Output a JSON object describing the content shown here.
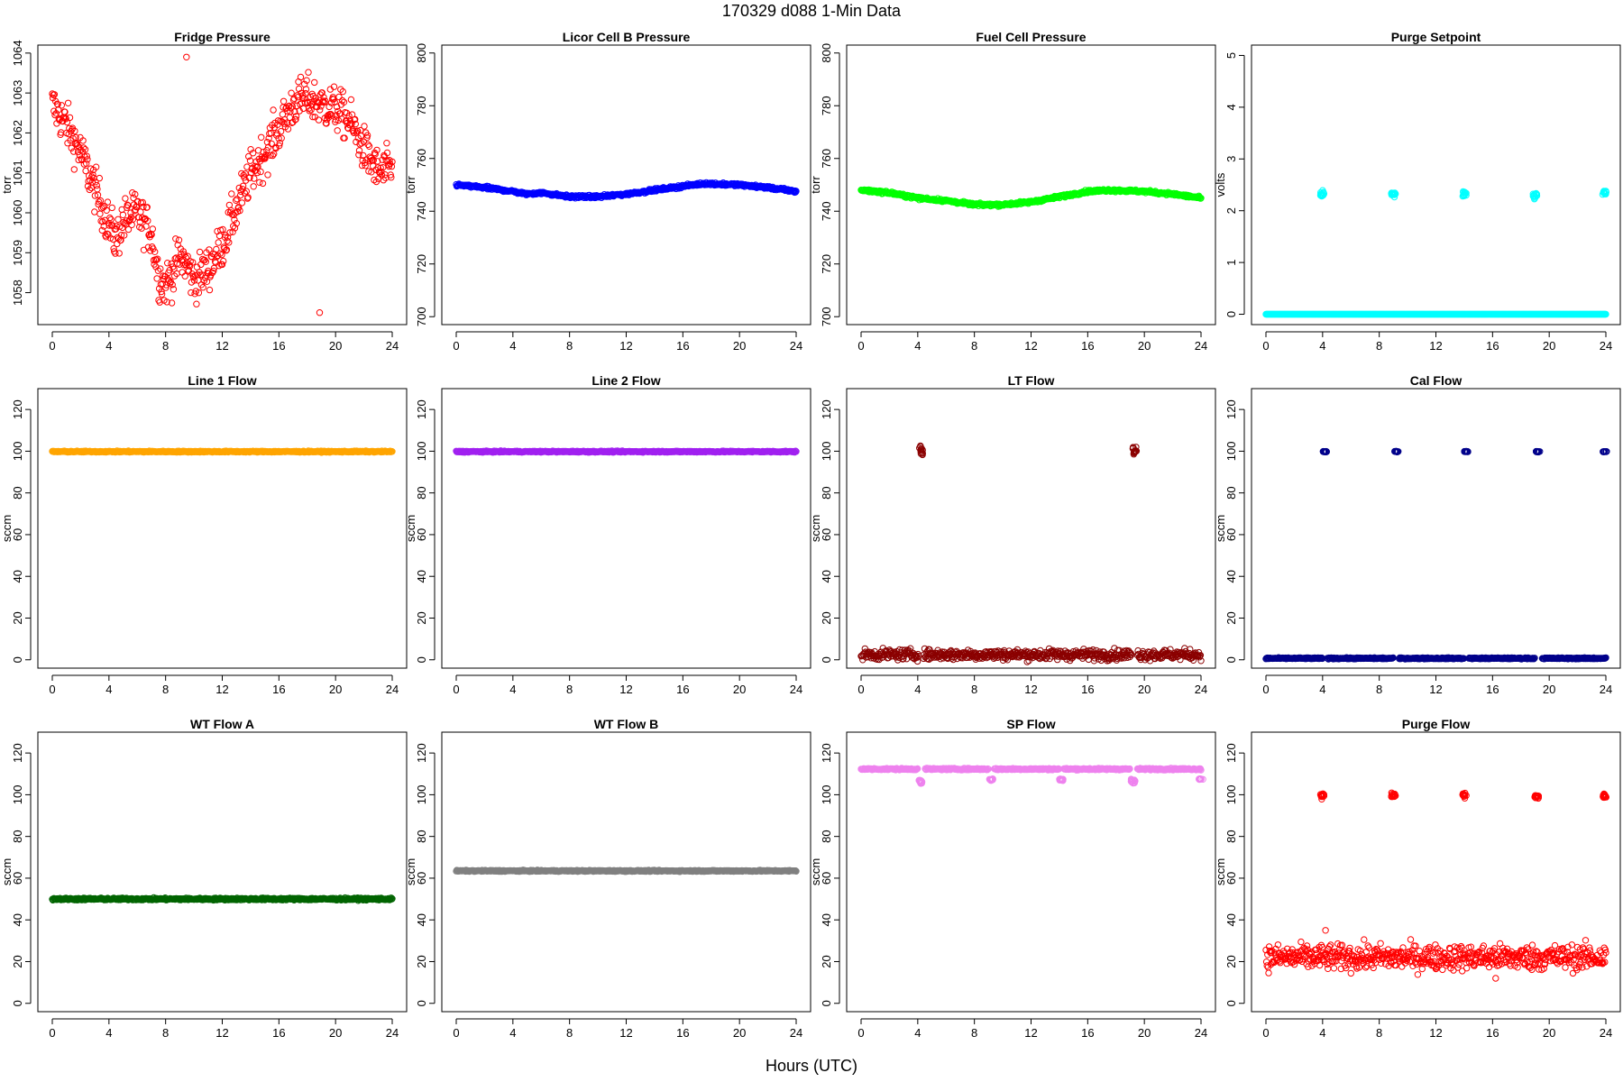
{
  "page": {
    "title": "170329   d088   1-Min Data",
    "xlabel": "Hours (UTC)"
  },
  "chart_data": [
    {
      "type": "scatter",
      "title": "Fridge Pressure",
      "ylabel": "torr",
      "xlim": [
        0,
        24
      ],
      "ylim": [
        1057.2,
        1064.2
      ],
      "xticks": [
        0,
        4,
        8,
        12,
        16,
        20,
        24
      ],
      "yticks": [
        1058,
        1059,
        1060,
        1061,
        1062,
        1063,
        1064
      ],
      "grid": false,
      "color": "#ff0000",
      "marker": "open-circle",
      "series": [
        {
          "x": [
            0,
            1,
            2,
            3,
            4,
            4.5,
            5,
            6,
            7,
            7.5,
            8,
            8.5,
            9,
            9.5,
            10,
            11,
            12,
            13,
            14,
            15,
            16,
            17,
            18,
            19,
            20,
            21,
            22,
            23,
            24
          ],
          "values": [
            1062.7,
            1062.2,
            1061.5,
            1060.6,
            1059.7,
            1059.3,
            1059.8,
            1060.0,
            1059.5,
            1058.4,
            1058.2,
            1058.5,
            1058.9,
            1058.7,
            1058.3,
            1058.6,
            1059.2,
            1060.1,
            1061.0,
            1061.5,
            1062.1,
            1062.7,
            1062.9,
            1062.7,
            1062.6,
            1062.3,
            1061.6,
            1061.0,
            1061.1
          ],
          "spread": 0.55,
          "outlier_values": [
            1063.9,
            1057.5
          ]
        }
      ]
    },
    {
      "type": "scatter",
      "title": "Licor Cell B Pressure",
      "ylabel": "torr",
      "xlim": [
        0,
        24
      ],
      "ylim": [
        697,
        803
      ],
      "xticks": [
        0,
        4,
        8,
        12,
        16,
        20,
        24
      ],
      "yticks": [
        700,
        720,
        740,
        760,
        780,
        800
      ],
      "grid": false,
      "color": "#0000ff",
      "marker": "open-circle",
      "series": [
        {
          "x": [
            0,
            2,
            4,
            5,
            6,
            8,
            10,
            12,
            14,
            16,
            17.5,
            20,
            22,
            24
          ],
          "values": [
            750,
            749,
            747.5,
            746.5,
            747,
            745.5,
            745.5,
            746.5,
            748,
            749.5,
            750.5,
            750,
            749,
            747.5
          ],
          "spread": 0.5,
          "outlier_values": []
        }
      ]
    },
    {
      "type": "scatter",
      "title": "Fuel Cell Pressure",
      "ylabel": "torr",
      "xlim": [
        0,
        24
      ],
      "ylim": [
        697,
        803
      ],
      "xticks": [
        0,
        4,
        8,
        12,
        16,
        20,
        24
      ],
      "yticks": [
        700,
        720,
        740,
        760,
        780,
        800
      ],
      "grid": false,
      "color": "#00ff00",
      "marker": "open-circle",
      "series": [
        {
          "x": [
            0,
            2,
            4,
            6,
            8,
            10,
            12,
            14,
            16,
            17.5,
            20,
            22,
            24
          ],
          "values": [
            748,
            747,
            745,
            744,
            742.5,
            742.5,
            743.5,
            745.5,
            747.5,
            748,
            747.5,
            746.5,
            745
          ],
          "spread": 0.5,
          "outlier_values": []
        }
      ]
    },
    {
      "type": "scatter",
      "title": "Purge Setpoint",
      "ylabel": "volts",
      "xlim": [
        0,
        24
      ],
      "ylim": [
        -0.2,
        5.2
      ],
      "xticks": [
        0,
        4,
        8,
        12,
        16,
        20,
        24
      ],
      "yticks": [
        0,
        1,
        2,
        3,
        4,
        5
      ],
      "grid": false,
      "color": "#00ffff",
      "marker": "open-circle",
      "series": [
        {
          "x": [
            0,
            24
          ],
          "values": [
            0,
            0
          ],
          "spread": 0,
          "clusters": [
            {
              "x": 4.0,
              "y": 2.33,
              "spread": 0.06
            },
            {
              "x": 9.0,
              "y": 2.33,
              "spread": 0.06
            },
            {
              "x": 14.0,
              "y": 2.33,
              "spread": 0.06
            },
            {
              "x": 19.0,
              "y": 2.3,
              "spread": 0.06
            },
            {
              "x": 23.9,
              "y": 2.35,
              "spread": 0.04
            }
          ]
        }
      ]
    },
    {
      "type": "scatter",
      "title": "Line 1 Flow",
      "ylabel": "sccm",
      "xlim": [
        0,
        24
      ],
      "ylim": [
        -4,
        130
      ],
      "xticks": [
        0,
        4,
        8,
        12,
        16,
        20,
        24
      ],
      "yticks": [
        0,
        20,
        40,
        60,
        80,
        100,
        120
      ],
      "grid": false,
      "color": "#ffa500",
      "marker": "open-circle",
      "series": [
        {
          "x": [
            0,
            24
          ],
          "values": [
            99.8,
            99.8
          ],
          "spread": 0.3
        }
      ]
    },
    {
      "type": "scatter",
      "title": "Line 2 Flow",
      "ylabel": "sccm",
      "xlim": [
        0,
        24
      ],
      "ylim": [
        -4,
        130
      ],
      "xticks": [
        0,
        4,
        8,
        12,
        16,
        20,
        24
      ],
      "yticks": [
        0,
        20,
        40,
        60,
        80,
        100,
        120
      ],
      "grid": false,
      "color": "#a020f0",
      "marker": "open-circle",
      "series": [
        {
          "x": [
            0,
            24
          ],
          "values": [
            99.8,
            99.8
          ],
          "spread": 0.3
        }
      ]
    },
    {
      "type": "scatter",
      "title": "LT Flow",
      "ylabel": "sccm",
      "xlim": [
        0,
        24
      ],
      "ylim": [
        -4,
        130
      ],
      "xticks": [
        0,
        4,
        8,
        12,
        16,
        20,
        24
      ],
      "yticks": [
        0,
        20,
        40,
        60,
        80,
        100,
        120
      ],
      "grid": false,
      "color": "#8b0000",
      "marker": "open-circle",
      "series": [
        {
          "x": [
            0,
            24
          ],
          "values": [
            2.5,
            2.5
          ],
          "spread": 2.5,
          "gaps": [
            [
              4.1,
              4.4
            ],
            [
              19.1,
              19.5
            ]
          ],
          "clusters": [
            {
              "x": 4.25,
              "y": 100,
              "spread": 2.5
            },
            {
              "x": 19.3,
              "y": 100,
              "spread": 2.5
            }
          ]
        }
      ]
    },
    {
      "type": "scatter",
      "title": "Cal Flow",
      "ylabel": "sccm",
      "xlim": [
        0,
        24
      ],
      "ylim": [
        -4,
        130
      ],
      "xticks": [
        0,
        4,
        8,
        12,
        16,
        20,
        24
      ],
      "yticks": [
        0,
        20,
        40,
        60,
        80,
        100,
        120
      ],
      "grid": false,
      "color": "#00008b",
      "marker": "open-circle",
      "series": [
        {
          "x": [
            0,
            24
          ],
          "values": [
            0.7,
            0.7
          ],
          "spread": 0.3,
          "gaps": [
            [
              4.0,
              4.3
            ],
            [
              9.0,
              9.4
            ],
            [
              14.0,
              14.3
            ],
            [
              19.0,
              19.5
            ]
          ],
          "clusters": [
            {
              "x": 4.15,
              "y": 99.8,
              "spread": 0.2
            },
            {
              "x": 9.2,
              "y": 99.8,
              "spread": 0.2
            },
            {
              "x": 14.15,
              "y": 99.8,
              "spread": 0.2
            },
            {
              "x": 19.2,
              "y": 99.8,
              "spread": 0.2
            },
            {
              "x": 23.9,
              "y": 99.8,
              "spread": 0.1
            }
          ]
        }
      ]
    },
    {
      "type": "scatter",
      "title": "WT Flow A",
      "ylabel": "sccm",
      "xlim": [
        0,
        24
      ],
      "ylim": [
        -4,
        130
      ],
      "xticks": [
        0,
        4,
        8,
        12,
        16,
        20,
        24
      ],
      "yticks": [
        0,
        20,
        40,
        60,
        80,
        100,
        120
      ],
      "grid": false,
      "color": "#006400",
      "marker": "open-circle",
      "series": [
        {
          "x": [
            0,
            24
          ],
          "values": [
            50,
            50
          ],
          "spread": 0.5
        }
      ]
    },
    {
      "type": "scatter",
      "title": "WT Flow B",
      "ylabel": "sccm",
      "xlim": [
        0,
        24
      ],
      "ylim": [
        -4,
        130
      ],
      "xticks": [
        0,
        4,
        8,
        12,
        16,
        20,
        24
      ],
      "yticks": [
        0,
        20,
        40,
        60,
        80,
        100,
        120
      ],
      "grid": false,
      "color": "#808080",
      "marker": "open-circle",
      "series": [
        {
          "x": [
            0,
            24
          ],
          "values": [
            63.5,
            63.5
          ],
          "spread": 0.3
        }
      ]
    },
    {
      "type": "scatter",
      "title": "SP Flow",
      "ylabel": "sccm",
      "xlim": [
        0,
        24
      ],
      "ylim": [
        -4,
        130
      ],
      "xticks": [
        0,
        4,
        8,
        12,
        16,
        20,
        24
      ],
      "yticks": [
        0,
        20,
        40,
        60,
        80,
        100,
        120
      ],
      "grid": false,
      "color": "#ee82ee",
      "marker": "open-circle",
      "series": [
        {
          "x": [
            0,
            24
          ],
          "values": [
            112.3,
            112.3
          ],
          "spread": 0.4,
          "gaps": [
            [
              4.0,
              4.5
            ],
            [
              9.0,
              9.4
            ],
            [
              14.0,
              14.3
            ],
            [
              19.0,
              19.5
            ]
          ],
          "clusters": [
            {
              "x": 4.2,
              "y": 106.5,
              "spread": 1.2
            },
            {
              "x": 9.2,
              "y": 107.2,
              "spread": 0.5
            },
            {
              "x": 14.15,
              "y": 107.2,
              "spread": 0.5
            },
            {
              "x": 19.2,
              "y": 106.5,
              "spread": 1.0
            },
            {
              "x": 24.0,
              "y": 107.5,
              "spread": 0.2
            }
          ]
        }
      ]
    },
    {
      "type": "scatter",
      "title": "Purge Flow",
      "ylabel": "sccm",
      "xlim": [
        0,
        24
      ],
      "ylim": [
        -4,
        130
      ],
      "xticks": [
        0,
        4,
        8,
        12,
        16,
        20,
        24
      ],
      "yticks": [
        0,
        20,
        40,
        60,
        80,
        100,
        120
      ],
      "grid": false,
      "color": "#ff0000",
      "marker": "open-circle",
      "series": [
        {
          "x": [
            0,
            24
          ],
          "values": [
            22,
            22
          ],
          "spread": 6,
          "outlier_values": [
            35,
            12
          ],
          "clusters": [
            {
              "x": 4.0,
              "y": 99.5,
              "spread": 1.5
            },
            {
              "x": 9.0,
              "y": 99.5,
              "spread": 1.5
            },
            {
              "x": 14.0,
              "y": 99.5,
              "spread": 1.5
            },
            {
              "x": 19.1,
              "y": 99.5,
              "spread": 1.5
            },
            {
              "x": 23.9,
              "y": 99.5,
              "spread": 1.0
            }
          ]
        }
      ]
    }
  ]
}
